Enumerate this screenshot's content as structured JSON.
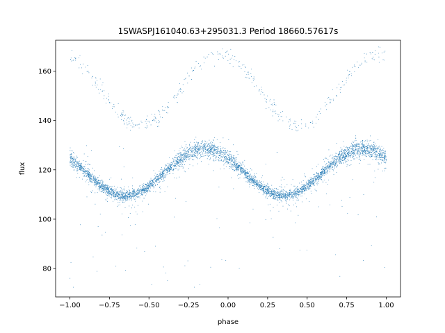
{
  "chart_data": {
    "type": "scatter",
    "title": "1SWASPJ161040.63+295031.3 Period 18660.57617s",
    "xlabel": "phase",
    "ylabel": "flux",
    "xlim": [
      -1.09,
      1.09
    ],
    "ylim": [
      68.5,
      172.5
    ],
    "xticks": [
      -1.0,
      -0.75,
      -0.5,
      -0.25,
      0.0,
      0.25,
      0.5,
      0.75,
      1.0
    ],
    "xtick_labels": [
      "−1.00",
      "−0.75",
      "−0.50",
      "−0.25",
      "0.00",
      "0.25",
      "0.50",
      "0.75",
      "1.00"
    ],
    "yticks": [
      80,
      100,
      120,
      140,
      160
    ],
    "ytick_labels": [
      "80",
      "100",
      "120",
      "140",
      "160"
    ],
    "grid": false,
    "point_color": "#1f77b4",
    "series": [
      {
        "name": "",
        "model": "sinusoid",
        "phase_range": [
          -1.0,
          1.0
        ],
        "mean_flux": 119.0,
        "amplitude": 9.5,
        "min_phase": -0.65,
        "max_phase": -0.15,
        "scatter": 1.5,
        "upper_branch_flux": [
          138,
          167
        ]
      }
    ]
  }
}
